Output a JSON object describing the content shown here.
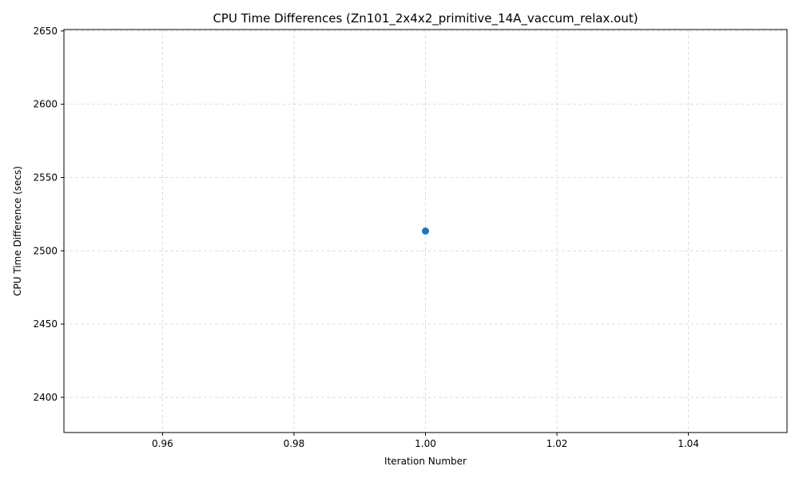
{
  "chart_data": {
    "type": "scatter",
    "title": "CPU Time Differences (Zn101_2x4x2_primitive_14A_vaccum_relax.out)",
    "xlabel": "Iteration Number",
    "ylabel": "CPU Time Difference (secs)",
    "xlim": [
      0.945,
      1.055
    ],
    "ylim": [
      2376,
      2651
    ],
    "x_ticks": [
      0.96,
      0.98,
      1.0,
      1.02,
      1.04
    ],
    "x_tick_labels": [
      "0.96",
      "0.98",
      "1.00",
      "1.02",
      "1.04"
    ],
    "y_ticks": [
      2400,
      2450,
      2500,
      2550,
      2600,
      2650
    ],
    "y_tick_labels": [
      "2400",
      "2450",
      "2500",
      "2550",
      "2600",
      "2650"
    ],
    "grid": true,
    "series": [
      {
        "color": "#1f77b4",
        "points": [
          {
            "x": 1.0,
            "y": 2513.5
          }
        ]
      }
    ]
  }
}
